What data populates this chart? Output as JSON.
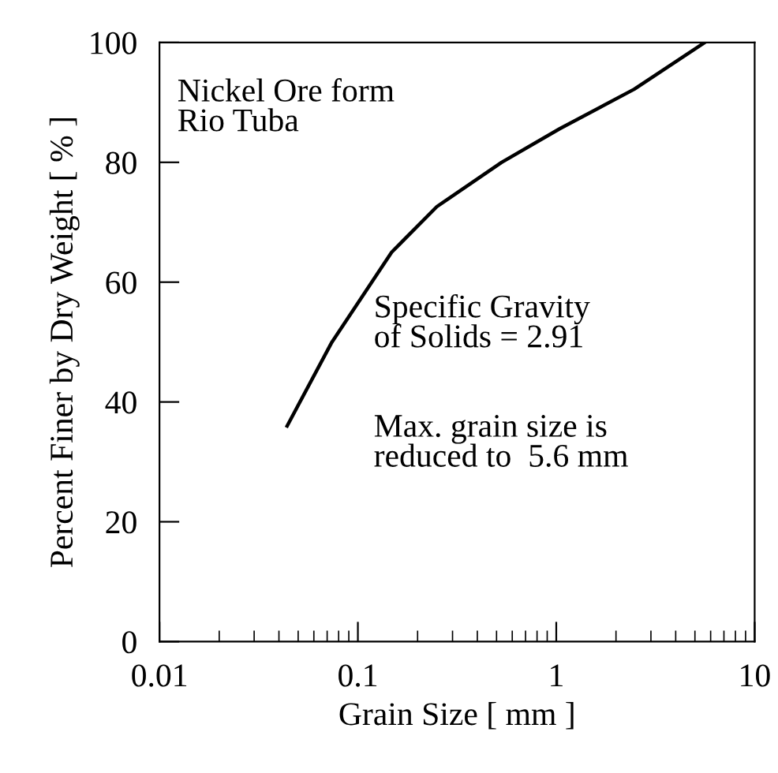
{
  "chart_data": {
    "type": "line",
    "xlabel": "Grain Size [ mm ]",
    "ylabel": "Percent Finer by Dry Weight [ % ]",
    "x": [
      0.044,
      0.074,
      0.148,
      0.25,
      0.53,
      1.04,
      2.47,
      5.6
    ],
    "series": [
      {
        "color": "#000000",
        "values": [
          36,
          50,
          65,
          72.6,
          80,
          85.6,
          92.2,
          100
        ]
      }
    ],
    "log": "x",
    "xlim": [
      0.01,
      10
    ],
    "xticks": [
      0.01,
      0.1,
      1,
      10
    ],
    "ylim": [
      0,
      100
    ],
    "yticks": [
      0,
      20,
      40,
      60,
      80,
      100
    ],
    "grid": false,
    "marker": "none",
    "line_style": "solid",
    "annotations": [
      "Nickel Ore form\nRio Tuba",
      "Specific Gravity\nof Solids = 2.91",
      "Max. grain size is\nreduced to  5.6 mm"
    ]
  }
}
